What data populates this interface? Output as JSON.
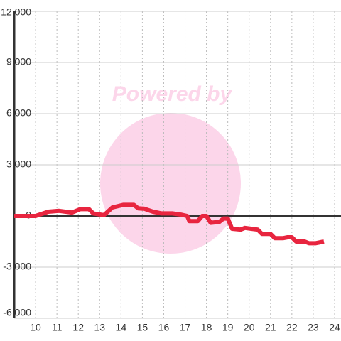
{
  "chart_data": {
    "type": "line",
    "watermark": "Powered by",
    "x": [
      9.0,
      10.0,
      10.6,
      11.1,
      11.7,
      12.1,
      12.5,
      12.7,
      13.2,
      13.6,
      14.1,
      14.6,
      14.8,
      15.1,
      15.5,
      15.9,
      16.4,
      16.8,
      17.1,
      17.2,
      17.6,
      17.8,
      18.0,
      18.2,
      18.6,
      18.8,
      19.0,
      19.2,
      19.6,
      19.8,
      20.1,
      20.4,
      20.6,
      21.0,
      21.2,
      21.6,
      21.8,
      22.0,
      22.2,
      22.6,
      22.8,
      23.1,
      23.5
    ],
    "series": [
      {
        "color": "#e8253f",
        "values": [
          0,
          0,
          250,
          300,
          200,
          400,
          400,
          150,
          50,
          500,
          650,
          650,
          450,
          420,
          250,
          150,
          150,
          80,
          0,
          -300,
          -300,
          0,
          0,
          -400,
          -350,
          -150,
          -150,
          -750,
          -800,
          -700,
          -750,
          -800,
          -1050,
          -1050,
          -1300,
          -1300,
          -1250,
          -1250,
          -1500,
          -1500,
          -1600,
          -1600,
          -1500
        ]
      }
    ],
    "xlim": [
      9,
      24.3
    ],
    "xticks": [
      10,
      11,
      12,
      13,
      14,
      15,
      16,
      17,
      18,
      19,
      20,
      21,
      22,
      23,
      24
    ],
    "ylim": [
      -6000,
      12000
    ],
    "yticks": [
      {
        "value": -6000,
        "label": "-6,000"
      },
      {
        "value": -3000,
        "label": "-3,000"
      },
      0,
      {
        "value": 3000,
        "label": "3,000"
      },
      {
        "value": 6000,
        "label": "6,000"
      },
      {
        "value": 9000,
        "label": "9,000"
      },
      {
        "value": 12000,
        "label": "12,000"
      }
    ],
    "grid": true
  }
}
